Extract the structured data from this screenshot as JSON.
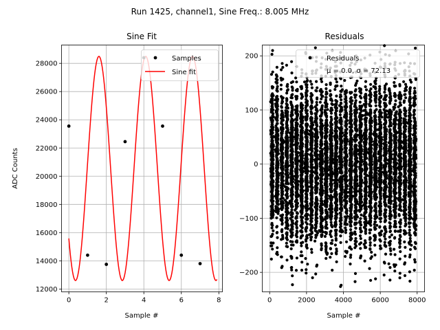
{
  "figure": {
    "suptitle": "Run 1425, channel1, Sine Freq.: 8.005 MHz"
  },
  "chart_data": [
    {
      "type": "line",
      "title": "Sine Fit",
      "xlabel": "Sample #",
      "ylabel": "ADC Counts",
      "xlim": [
        -0.39,
        8.19
      ],
      "ylim": [
        11800,
        29300
      ],
      "xticks": [
        0,
        2,
        4,
        6,
        8
      ],
      "yticks": [
        12000,
        14000,
        16000,
        18000,
        20000,
        22000,
        24000,
        26000,
        28000
      ],
      "grid": true,
      "legend_placement": "top-right",
      "legend": [
        "Samples",
        "Sine fit"
      ],
      "samples": {
        "name": "Samples",
        "color": "#000000",
        "x": [
          0,
          1,
          2,
          3,
          4,
          5,
          6,
          7
        ],
        "y": [
          23550,
          14400,
          13750,
          22450,
          28400,
          23550,
          14400,
          13800
        ]
      },
      "fit": {
        "name": "Sine fit",
        "color": "#ff0000",
        "x_range": [
          0,
          7.9
        ],
        "amplitude": 7950,
        "offset": 20550,
        "period": 2.496,
        "phase_peak_x": 4.1
      }
    },
    {
      "type": "scatter",
      "title": "Residuals",
      "xlabel": "Sample #",
      "ylabel": "",
      "xlim": [
        -400,
        8400
      ],
      "ylim": [
        -236,
        220
      ],
      "xticks": [
        0,
        2000,
        4000,
        6000,
        8000
      ],
      "yticks": [
        -200,
        -100,
        0,
        100,
        200
      ],
      "yticklabels": [
        "−200",
        "−100",
        "0",
        "100",
        "200"
      ],
      "grid": true,
      "legend_placement": "top-right",
      "legend": [
        "Residuals",
        "μ = 0.0, σ = 72.13"
      ],
      "series": {
        "name": "Residuals",
        "color": "#000000",
        "n_points": 8000,
        "mean": 0.0,
        "sigma": 72.13,
        "x_range": [
          0,
          8000
        ],
        "clusters_per_period": 30
      }
    }
  ]
}
